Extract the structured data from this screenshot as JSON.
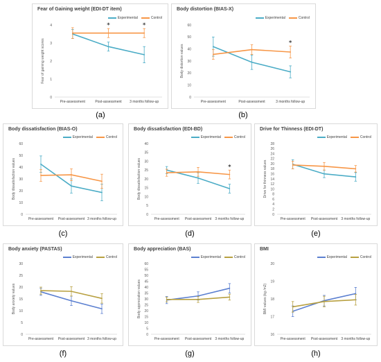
{
  "figure": {
    "captions": [
      "(a)",
      "(b)",
      "(c)",
      "(d)",
      "(e)",
      "(f)",
      "(g)",
      "(h)"
    ]
  },
  "chart_data": [
    {
      "type": "line",
      "title": "Fear of Gaining weight (EDI-DT item)",
      "ylabel": "Fear of gaining weight  scores",
      "xlabel": "",
      "categories": [
        "Pre-assessment",
        "Post-assessment",
        "3 months follow-up"
      ],
      "ylim": [
        0,
        4
      ],
      "yticks": [
        0,
        1,
        2,
        3,
        4
      ],
      "grid": false,
      "legend_position": "top",
      "series": [
        {
          "name": "Experimental",
          "color": "#4bacc6",
          "values": [
            3.5,
            2.8,
            2.35
          ],
          "err": [
            0.25,
            0.25,
            0.45
          ]
        },
        {
          "name": "Control",
          "color": "#f79646",
          "values": [
            3.55,
            3.55,
            3.55
          ],
          "err": [
            0.3,
            0.25,
            0.25
          ]
        }
      ],
      "significance": [
        "",
        "*",
        "*"
      ]
    },
    {
      "type": "line",
      "title": "Body distortion (BIAS-X)",
      "ylabel": "Body distortion values",
      "xlabel": "",
      "categories": [
        "Pre-assessment",
        "Post-assessment",
        "3 months follow-up"
      ],
      "ylim": [
        0,
        60
      ],
      "yticks": [
        0,
        10,
        20,
        30,
        40,
        50,
        60
      ],
      "grid": false,
      "legend_position": "top",
      "series": [
        {
          "name": "Experimental",
          "color": "#4bacc6",
          "values": [
            42,
            29,
            21
          ],
          "err": [
            8,
            6,
            5
          ]
        },
        {
          "name": "Control",
          "color": "#f79646",
          "values": [
            35.5,
            39.5,
            37.5
          ],
          "err": [
            4,
            4,
            5
          ]
        }
      ],
      "significance": [
        "",
        "",
        "*"
      ]
    },
    {
      "type": "line",
      "title": "Body dissatisfaction (BIAS-O)",
      "ylabel": "Body dissatisfaction values",
      "xlabel": "",
      "categories": [
        "Pre-assessment",
        "Post-assessment",
        "3 months follow-up"
      ],
      "ylim": [
        0,
        60
      ],
      "yticks": [
        0,
        10,
        20,
        30,
        40,
        50,
        60
      ],
      "grid": false,
      "legend_position": "top",
      "series": [
        {
          "name": "Experimental",
          "color": "#4bacc6",
          "values": [
            42.5,
            24,
            18.5
          ],
          "err": [
            7,
            6,
            7
          ]
        },
        {
          "name": "Control",
          "color": "#f79646",
          "values": [
            33,
            33.5,
            28
          ],
          "err": [
            5,
            5,
            6
          ]
        }
      ],
      "significance": [
        "",
        "",
        ""
      ]
    },
    {
      "type": "line",
      "title": "Body dissatisfaction (EDI-BD)",
      "ylabel": "Body dissatisfaction values",
      "xlabel": "",
      "categories": [
        "Pre-assessment",
        "Post-assessment",
        "3 months follow-up"
      ],
      "ylim": [
        0,
        40
      ],
      "yticks": [
        0,
        5,
        10,
        15,
        20,
        25,
        30,
        35,
        40
      ],
      "grid": false,
      "legend_position": "top",
      "series": [
        {
          "name": "Experimental",
          "color": "#4bacc6",
          "values": [
            25,
            20.5,
            14.5
          ],
          "err": [
            2,
            3,
            2.5
          ]
        },
        {
          "name": "Control",
          "color": "#f79646",
          "values": [
            23.5,
            24,
            22.5
          ],
          "err": [
            2,
            2.5,
            2.5
          ]
        }
      ],
      "significance": [
        "",
        "",
        "*"
      ]
    },
    {
      "type": "line",
      "title": "Drive for Thinness (EDI-DT)",
      "ylabel": "Drive for thinness values",
      "xlabel": "",
      "categories": [
        "Pre-assessment",
        "Post-assessment",
        "3 months follow-up"
      ],
      "ylim": [
        0,
        28
      ],
      "yticks": [
        0,
        2,
        4,
        6,
        8,
        10,
        12,
        14,
        16,
        18,
        20,
        22,
        24,
        26,
        28
      ],
      "grid": false,
      "legend_position": "top",
      "series": [
        {
          "name": "Experimental",
          "color": "#4bacc6",
          "values": [
            19.8,
            16,
            14.8
          ],
          "err": [
            1.8,
            1.5,
            1.7
          ]
        },
        {
          "name": "Control",
          "color": "#f79646",
          "values": [
            19.5,
            19,
            18
          ],
          "err": [
            1.5,
            1.5,
            1.3
          ]
        }
      ],
      "significance": [
        "",
        "",
        ""
      ]
    },
    {
      "type": "line",
      "title": "Body anxiety (PASTAS)",
      "ylabel": "Body anxiety values",
      "xlabel": "",
      "categories": [
        "Pre-assessment",
        "Post-assessment",
        "3 months follow-up"
      ],
      "ylim": [
        0,
        30
      ],
      "yticks": [
        0,
        5,
        10,
        15,
        20,
        25,
        30
      ],
      "grid": false,
      "legend_position": "top",
      "series": [
        {
          "name": "Experimental",
          "color": "#5b7fd0",
          "values": [
            18,
            14.2,
            10.8
          ],
          "err": [
            1.5,
            2,
            2
          ]
        },
        {
          "name": "Control",
          "color": "#b8a040",
          "values": [
            18.5,
            18.2,
            15.2
          ],
          "err": [
            1.5,
            2,
            2
          ]
        }
      ],
      "significance": [
        "",
        "",
        ""
      ]
    },
    {
      "type": "line",
      "title": "Body appreciation (BAS)",
      "ylabel": "Body appreciation values",
      "xlabel": "",
      "categories": [
        "Pre-assessment",
        "Post-assessment",
        "3 months follow-up"
      ],
      "ylim": [
        0,
        60
      ],
      "yticks": [
        0,
        5,
        10,
        15,
        20,
        25,
        30,
        35,
        40,
        45,
        50,
        55,
        60
      ],
      "grid": false,
      "legend_position": "top",
      "series": [
        {
          "name": "Experimental",
          "color": "#5b7fd0",
          "values": [
            29,
            32.5,
            39
          ],
          "err": [
            3,
            3.5,
            4
          ]
        },
        {
          "name": "Control",
          "color": "#b8a040",
          "values": [
            29.5,
            29.5,
            31.5
          ],
          "err": [
            2,
            2.5,
            2.5
          ]
        }
      ],
      "significance": [
        "",
        "",
        ""
      ]
    },
    {
      "type": "line",
      "title": "BMI",
      "ylabel": "BMI values (kg /m2)",
      "xlabel": "",
      "categories": [
        "Pre-assessment",
        "Post-assessment",
        "3 months follow-up"
      ],
      "ylim": [
        16,
        20
      ],
      "yticks": [
        16,
        17,
        18,
        19,
        20
      ],
      "grid": false,
      "legend_position": "top",
      "series": [
        {
          "name": "Experimental",
          "color": "#5b7fd0",
          "values": [
            17.3,
            17.9,
            18.3
          ],
          "err": [
            0.3,
            0.3,
            0.35
          ]
        },
        {
          "name": "Control",
          "color": "#b8a040",
          "values": [
            17.55,
            17.85,
            17.95
          ],
          "err": [
            0.3,
            0.3,
            0.3
          ]
        }
      ],
      "significance": [
        "",
        "",
        ""
      ]
    }
  ]
}
